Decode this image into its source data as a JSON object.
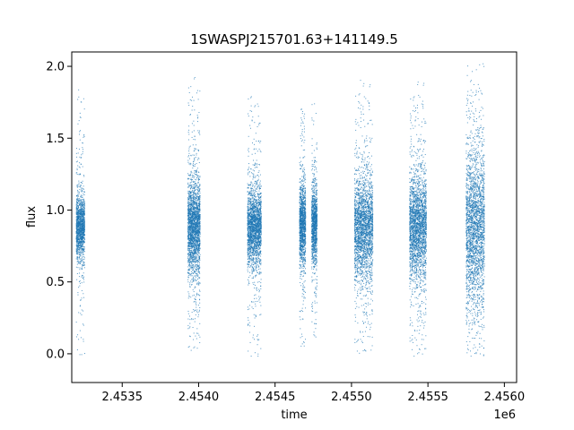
{
  "chart_data": {
    "type": "scatter",
    "title": "1SWASPJ215701.63+141149.5",
    "xlabel": "time",
    "ylabel": "flux",
    "x_offset_label": "1e6",
    "xlim": [
      2453170,
      2456080
    ],
    "ylim": [
      -0.2,
      2.1
    ],
    "x_ticks": [
      2453500,
      2454000,
      2454500,
      2455000,
      2455500,
      2456000
    ],
    "x_tick_labels": [
      "2.4535",
      "2.4540",
      "2.4545",
      "2.4550",
      "2.4555",
      "2.4560"
    ],
    "y_ticks": [
      0.0,
      0.5,
      1.0,
      1.5,
      2.0
    ],
    "y_tick_labels": [
      "0.0",
      "0.5",
      "1.0",
      "1.5",
      "2.0"
    ],
    "grid": false,
    "marker_color": "#1f77b4",
    "segments": [
      {
        "x_start": 2453200,
        "x_end": 2453255,
        "center": 0.88,
        "spread": 0.11,
        "min": -0.1,
        "max": 1.9,
        "density": 0.55
      },
      {
        "x_start": 2453930,
        "x_end": 2454010,
        "center": 0.88,
        "spread": 0.16,
        "min": 0.02,
        "max": 1.98,
        "density": 0.9
      },
      {
        "x_start": 2454320,
        "x_end": 2454410,
        "center": 0.88,
        "spread": 0.13,
        "min": -0.02,
        "max": 1.9,
        "density": 0.85
      },
      {
        "x_start": 2454660,
        "x_end": 2454700,
        "center": 0.9,
        "spread": 0.14,
        "min": 0.05,
        "max": 1.8,
        "density": 0.5
      },
      {
        "x_start": 2454740,
        "x_end": 2454775,
        "center": 0.9,
        "spread": 0.13,
        "min": 0.1,
        "max": 1.85,
        "density": 0.45
      },
      {
        "x_start": 2455020,
        "x_end": 2455140,
        "center": 0.87,
        "spread": 0.18,
        "min": 0.0,
        "max": 1.92,
        "density": 0.95
      },
      {
        "x_start": 2455380,
        "x_end": 2455490,
        "center": 0.88,
        "spread": 0.18,
        "min": -0.02,
        "max": 1.9,
        "density": 0.95
      },
      {
        "x_start": 2455750,
        "x_end": 2455870,
        "center": 0.87,
        "spread": 0.28,
        "min": -0.02,
        "max": 2.02,
        "density": 1.0
      }
    ]
  }
}
